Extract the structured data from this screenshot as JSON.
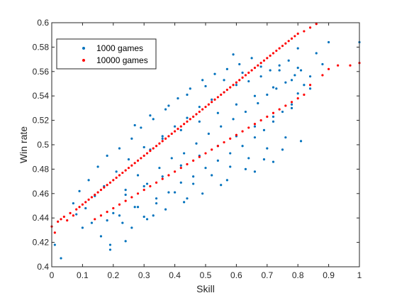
{
  "chart_data": {
    "type": "scatter",
    "title": "",
    "xlabel": "Skill",
    "ylabel": "Win rate",
    "xlim": [
      0,
      1
    ],
    "ylim": [
      0.4,
      0.6
    ],
    "xticks": [
      "0",
      "0.1",
      "0.2",
      "0.3",
      "0.4",
      "0.5",
      "0.6",
      "0.7",
      "0.8",
      "0.9",
      "1"
    ],
    "yticks": [
      "0.4",
      "0.42",
      "0.44",
      "0.46",
      "0.48",
      "0.5",
      "0.52",
      "0.54",
      "0.56",
      "0.58",
      "0.6"
    ],
    "grid": false,
    "legend_position": "top-left",
    "series": [
      {
        "name": "1000 games",
        "color": "#0072BD",
        "points": [
          [
            0.03,
            0.407
          ],
          [
            0.01,
            0.418
          ],
          [
            0.07,
            0.452
          ],
          [
            0.08,
            0.443
          ],
          [
            0.09,
            0.462
          ],
          [
            0.1,
            0.432
          ],
          [
            0.11,
            0.448
          ],
          [
            0.12,
            0.471
          ],
          [
            0.13,
            0.436
          ],
          [
            0.14,
            0.458
          ],
          [
            0.15,
            0.482
          ],
          [
            0.16,
            0.425
          ],
          [
            0.17,
            0.466
          ],
          [
            0.18,
            0.491
          ],
          [
            0.19,
            0.418
          ],
          [
            0.2,
            0.444
          ],
          [
            0.21,
            0.478
          ],
          [
            0.22,
            0.497
          ],
          [
            0.23,
            0.436
          ],
          [
            0.24,
            0.463
          ],
          [
            0.25,
            0.488
          ],
          [
            0.26,
            0.505
          ],
          [
            0.27,
            0.449
          ],
          [
            0.28,
            0.475
          ],
          [
            0.29,
            0.514
          ],
          [
            0.3,
            0.441
          ],
          [
            0.31,
            0.468
          ],
          [
            0.32,
            0.496
          ],
          [
            0.33,
            0.521
          ],
          [
            0.34,
            0.452
          ],
          [
            0.35,
            0.481
          ],
          [
            0.36,
            0.507
          ],
          [
            0.37,
            0.529
          ],
          [
            0.38,
            0.461
          ],
          [
            0.39,
            0.489
          ],
          [
            0.4,
            0.515
          ],
          [
            0.41,
            0.538
          ],
          [
            0.42,
            0.469
          ],
          [
            0.43,
            0.493
          ],
          [
            0.44,
            0.522
          ],
          [
            0.45,
            0.546
          ],
          [
            0.46,
            0.474
          ],
          [
            0.47,
            0.501
          ],
          [
            0.48,
            0.531
          ],
          [
            0.49,
            0.553
          ],
          [
            0.5,
            0.481
          ],
          [
            0.51,
            0.509
          ],
          [
            0.52,
            0.537
          ],
          [
            0.53,
            0.558
          ],
          [
            0.54,
            0.487
          ],
          [
            0.55,
            0.515
          ],
          [
            0.56,
            0.543
          ],
          [
            0.57,
            0.562
          ],
          [
            0.58,
            0.493
          ],
          [
            0.59,
            0.521
          ],
          [
            0.6,
            0.549
          ],
          [
            0.61,
            0.566
          ],
          [
            0.62,
            0.499
          ],
          [
            0.63,
            0.527
          ],
          [
            0.64,
            0.552
          ],
          [
            0.65,
            0.571
          ],
          [
            0.66,
            0.506
          ],
          [
            0.67,
            0.534
          ],
          [
            0.68,
            0.556
          ],
          [
            0.69,
            0.512
          ],
          [
            0.7,
            0.541
          ],
          [
            0.71,
            0.561
          ],
          [
            0.72,
            0.519
          ],
          [
            0.73,
            0.546
          ],
          [
            0.74,
            0.565
          ],
          [
            0.75,
            0.527
          ],
          [
            0.76,
            0.551
          ],
          [
            0.77,
            0.569
          ],
          [
            0.78,
            0.533
          ],
          [
            0.79,
            0.557
          ],
          [
            0.8,
            0.542
          ],
          [
            0.81,
            0.561
          ],
          [
            0.82,
            0.549
          ],
          [
            0.84,
            0.556
          ],
          [
            0.86,
            0.575
          ],
          [
            0.88,
            0.566
          ],
          [
            0.9,
            0.584
          ],
          [
            0.52,
            0.475
          ],
          [
            0.58,
            0.482
          ],
          [
            0.64,
            0.489
          ],
          [
            0.7,
            0.497
          ],
          [
            0.76,
            0.506
          ],
          [
            0.46,
            0.468
          ],
          [
            0.4,
            0.461
          ],
          [
            0.34,
            0.456
          ],
          [
            0.28,
            0.449
          ],
          [
            0.22,
            0.442
          ],
          [
            0.18,
            0.438
          ],
          [
            0.24,
            0.421
          ],
          [
            0.19,
            0.414
          ],
          [
            0.33,
            0.442
          ],
          [
            0.44,
            0.456
          ],
          [
            0.55,
            0.467
          ],
          [
            0.66,
            0.478
          ],
          [
            0.72,
            0.486
          ],
          [
            0.38,
            0.532
          ],
          [
            0.32,
            0.524
          ],
          [
            0.27,
            0.516
          ],
          [
            0.44,
            0.541
          ],
          [
            0.5,
            0.548
          ],
          [
            0.56,
            0.553
          ],
          [
            0.62,
            0.559
          ],
          [
            0.68,
            0.564
          ],
          [
            0.74,
            0.561
          ],
          [
            0.8,
            0.563
          ],
          [
            0.36,
            0.474
          ],
          [
            0.42,
            0.483
          ],
          [
            0.48,
            0.491
          ],
          [
            0.54,
            0.499
          ],
          [
            0.6,
            0.507
          ],
          [
            0.66,
            0.515
          ],
          [
            0.72,
            0.523
          ],
          [
            0.78,
            0.53
          ],
          [
            0.3,
            0.466
          ],
          [
            0.24,
            0.459
          ],
          [
            0.3,
            0.498
          ],
          [
            0.36,
            0.505
          ],
          [
            0.42,
            0.512
          ],
          [
            0.48,
            0.519
          ],
          [
            0.54,
            0.526
          ],
          [
            0.6,
            0.533
          ],
          [
            0.66,
            0.54
          ],
          [
            0.72,
            0.547
          ],
          [
            0.78,
            0.553
          ],
          [
            0.84,
            0.546
          ],
          [
            0.26,
            0.432
          ],
          [
            0.31,
            0.439
          ],
          [
            0.37,
            0.447
          ],
          [
            0.43,
            0.453
          ],
          [
            0.49,
            0.46
          ],
          [
            0.57,
            0.471
          ],
          [
            0.63,
            0.48
          ],
          [
            0.69,
            0.488
          ],
          [
            0.75,
            0.496
          ],
          [
            0.81,
            0.503
          ],
          [
            1.0,
            0.584
          ],
          [
            0.8,
            0.579
          ],
          [
            0.59,
            0.574
          ]
        ]
      },
      {
        "name": "10000 games",
        "color": "#FF0000",
        "points": [
          [
            0.0,
            0.433
          ],
          [
            0.01,
            0.428
          ],
          [
            0.02,
            0.437
          ],
          [
            0.03,
            0.439
          ],
          [
            0.04,
            0.441
          ],
          [
            0.05,
            0.438
          ],
          [
            0.06,
            0.444
          ],
          [
            0.07,
            0.442
          ],
          [
            0.08,
            0.447
          ],
          [
            0.09,
            0.449
          ],
          [
            0.1,
            0.451
          ],
          [
            0.11,
            0.453
          ],
          [
            0.12,
            0.455
          ],
          [
            0.13,
            0.457
          ],
          [
            0.14,
            0.459
          ],
          [
            0.15,
            0.461
          ],
          [
            0.16,
            0.463
          ],
          [
            0.17,
            0.465
          ],
          [
            0.18,
            0.467
          ],
          [
            0.19,
            0.469
          ],
          [
            0.2,
            0.471
          ],
          [
            0.21,
            0.473
          ],
          [
            0.22,
            0.475
          ],
          [
            0.23,
            0.477
          ],
          [
            0.24,
            0.479
          ],
          [
            0.25,
            0.481
          ],
          [
            0.26,
            0.483
          ],
          [
            0.27,
            0.485
          ],
          [
            0.28,
            0.487
          ],
          [
            0.29,
            0.489
          ],
          [
            0.3,
            0.491
          ],
          [
            0.31,
            0.493
          ],
          [
            0.32,
            0.495
          ],
          [
            0.33,
            0.497
          ],
          [
            0.34,
            0.499
          ],
          [
            0.35,
            0.501
          ],
          [
            0.36,
            0.503
          ],
          [
            0.37,
            0.505
          ],
          [
            0.38,
            0.507
          ],
          [
            0.39,
            0.509
          ],
          [
            0.4,
            0.511
          ],
          [
            0.41,
            0.513
          ],
          [
            0.42,
            0.515
          ],
          [
            0.43,
            0.517
          ],
          [
            0.44,
            0.519
          ],
          [
            0.45,
            0.521
          ],
          [
            0.46,
            0.523
          ],
          [
            0.47,
            0.525
          ],
          [
            0.48,
            0.527
          ],
          [
            0.49,
            0.529
          ],
          [
            0.5,
            0.531
          ],
          [
            0.51,
            0.533
          ],
          [
            0.52,
            0.535
          ],
          [
            0.53,
            0.537
          ],
          [
            0.54,
            0.539
          ],
          [
            0.55,
            0.541
          ],
          [
            0.56,
            0.543
          ],
          [
            0.57,
            0.545
          ],
          [
            0.58,
            0.547
          ],
          [
            0.59,
            0.549
          ],
          [
            0.6,
            0.551
          ],
          [
            0.61,
            0.553
          ],
          [
            0.62,
            0.555
          ],
          [
            0.63,
            0.557
          ],
          [
            0.64,
            0.559
          ],
          [
            0.65,
            0.561
          ],
          [
            0.66,
            0.563
          ],
          [
            0.67,
            0.565
          ],
          [
            0.68,
            0.567
          ],
          [
            0.69,
            0.569
          ],
          [
            0.7,
            0.571
          ],
          [
            0.71,
            0.573
          ],
          [
            0.72,
            0.575
          ],
          [
            0.73,
            0.577
          ],
          [
            0.74,
            0.579
          ],
          [
            0.75,
            0.581
          ],
          [
            0.76,
            0.583
          ],
          [
            0.77,
            0.585
          ],
          [
            0.78,
            0.587
          ],
          [
            0.79,
            0.589
          ],
          [
            0.8,
            0.591
          ],
          [
            0.82,
            0.593
          ],
          [
            0.84,
            0.596
          ],
          [
            0.86,
            0.599
          ],
          [
            0.88,
            0.557
          ],
          [
            0.9,
            0.562
          ],
          [
            0.93,
            0.565
          ],
          [
            0.97,
            0.565
          ],
          [
            1.0,
            0.567
          ],
          [
            0.84,
            0.549
          ],
          [
            0.82,
            0.541
          ],
          [
            0.8,
            0.538
          ],
          [
            0.78,
            0.535
          ],
          [
            0.76,
            0.532
          ],
          [
            0.74,
            0.529
          ],
          [
            0.72,
            0.526
          ],
          [
            0.7,
            0.523
          ],
          [
            0.68,
            0.52
          ],
          [
            0.66,
            0.517
          ],
          [
            0.64,
            0.514
          ],
          [
            0.62,
            0.511
          ],
          [
            0.6,
            0.508
          ],
          [
            0.58,
            0.505
          ],
          [
            0.56,
            0.502
          ],
          [
            0.54,
            0.499
          ],
          [
            0.52,
            0.496
          ],
          [
            0.5,
            0.493
          ],
          [
            0.48,
            0.49
          ],
          [
            0.46,
            0.487
          ],
          [
            0.44,
            0.484
          ],
          [
            0.42,
            0.481
          ],
          [
            0.4,
            0.478
          ],
          [
            0.38,
            0.475
          ],
          [
            0.36,
            0.472
          ],
          [
            0.34,
            0.469
          ],
          [
            0.32,
            0.466
          ],
          [
            0.3,
            0.463
          ],
          [
            0.28,
            0.46
          ],
          [
            0.26,
            0.457
          ],
          [
            0.24,
            0.454
          ],
          [
            0.22,
            0.451
          ],
          [
            0.2,
            0.448
          ],
          [
            0.18,
            0.445
          ],
          [
            0.16,
            0.442
          ],
          [
            0.14,
            0.439
          ]
        ]
      }
    ]
  },
  "legend": {
    "items": [
      {
        "label": "1000 games",
        "color": "#0072BD"
      },
      {
        "label": "10000 games",
        "color": "#FF0000"
      }
    ]
  }
}
